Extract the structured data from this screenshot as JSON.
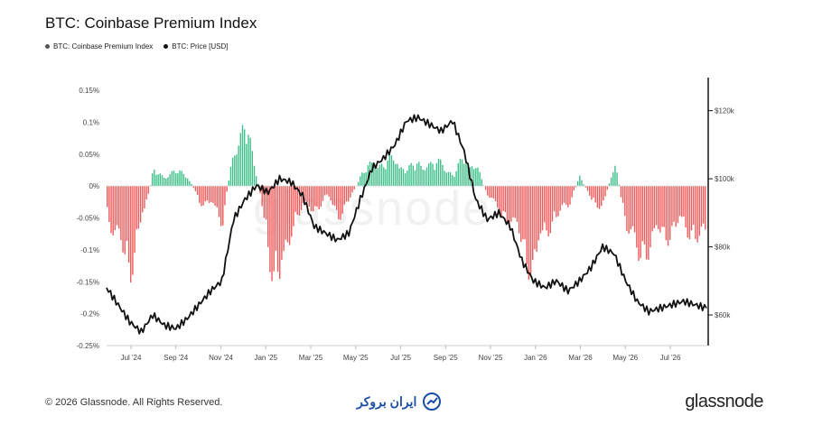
{
  "title": "BTC: Coinbase Premium Index",
  "legend": [
    {
      "label": "BTC: Coinbase Premium Index",
      "color": "#555555"
    },
    {
      "label": "BTC: Price [USD]",
      "color": "#111111"
    }
  ],
  "footer": {
    "copyright": "© 2026 Glassnode. All Rights Reserved.",
    "brand": "glassnode",
    "partner_logo": "ایران بروکر"
  },
  "watermark": "glassnode",
  "colors": {
    "positive": "#3fbf8a",
    "negative": "#ee5a5a",
    "price": "#111111"
  },
  "chart_data": {
    "type": "bar+line",
    "x_ticks": [
      "Jul '24",
      "Sep '24",
      "Nov '24",
      "Jan '25",
      "Mar '25",
      "May '25",
      "Jul '25",
      "Sep '25",
      "Nov '25",
      "Jan '26",
      "Mar '26",
      "May '26",
      "Jul '26"
    ],
    "y_left_ticks": [
      "0.15%",
      "0.1%",
      "0.05%",
      "0%",
      "-0.05%",
      "-0.1%",
      "-0.15%",
      "-0.2%",
      "-0.25%"
    ],
    "y_left_range": [
      -0.25,
      0.15
    ],
    "y_right_ticks": [
      "$120k",
      "$100k",
      "$80k",
      "$60k"
    ],
    "y_right_range": [
      51000,
      126000
    ],
    "x_range": [
      0,
      26
    ],
    "series": [
      {
        "name": "BTC: Coinbase Premium Index",
        "unit": "%",
        "x": [
          0,
          0.5,
          1,
          1.5,
          2,
          2.5,
          3,
          3.5,
          4,
          4.5,
          5,
          5.5,
          6,
          6.5,
          7,
          7.5,
          8,
          8.5,
          9,
          9.5,
          10,
          10.5,
          11,
          11.5,
          12,
          12.5,
          13,
          13.5,
          14,
          14.5,
          15,
          15.5,
          16,
          16.5,
          17,
          17.5,
          18,
          18.5,
          19,
          19.5,
          20,
          20.5,
          21,
          21.5,
          22,
          22.5,
          23,
          23.5,
          24,
          24.5,
          25,
          25.5,
          26
        ],
        "values": [
          -0.06,
          -0.12,
          -0.16,
          -0.08,
          0.03,
          0.02,
          0.03,
          0.02,
          -0.03,
          -0.04,
          -0.07,
          0.08,
          0.12,
          0.02,
          -0.13,
          -0.21,
          -0.08,
          -0.04,
          -0.05,
          -0.02,
          -0.06,
          -0.03,
          0.02,
          0.05,
          0.04,
          0.06,
          0.03,
          0.05,
          0.04,
          0.05,
          0.02,
          0.06,
          0.04,
          -0.02,
          -0.05,
          -0.07,
          -0.12,
          -0.17,
          -0.09,
          -0.06,
          -0.04,
          0.02,
          -0.03,
          -0.04,
          0.05,
          -0.08,
          -0.14,
          -0.12,
          -0.1,
          -0.09,
          -0.08,
          -0.1,
          -0.11
        ]
      },
      {
        "name": "BTC: Price [USD]",
        "unit": "USD",
        "x": [
          0,
          0.5,
          1,
          1.5,
          2,
          2.5,
          3,
          3.5,
          4,
          4.5,
          5,
          5.5,
          6,
          6.5,
          7,
          7.5,
          8,
          8.5,
          9,
          9.5,
          10,
          10.5,
          11,
          11.5,
          12,
          12.5,
          13,
          13.5,
          14,
          14.5,
          15,
          15.5,
          16,
          16.5,
          17,
          17.5,
          18,
          18.5,
          19,
          19.5,
          20,
          20.5,
          21,
          21.5,
          22,
          22.5,
          23,
          23.5,
          24,
          24.5,
          25,
          25.5,
          26
        ],
        "values": [
          68000,
          63000,
          58000,
          55000,
          60000,
          57000,
          56000,
          59000,
          63000,
          67000,
          70000,
          88000,
          94000,
          98000,
          96000,
          100000,
          99000,
          95000,
          86000,
          84000,
          82000,
          84000,
          94000,
          103000,
          106000,
          110000,
          117000,
          118000,
          116000,
          114000,
          117000,
          108000,
          94000,
          88000,
          90000,
          86000,
          76000,
          70000,
          68000,
          70000,
          67000,
          70000,
          74000,
          80000,
          78000,
          70000,
          64000,
          61000,
          62000,
          63000,
          64000,
          63000,
          62000
        ]
      }
    ]
  }
}
